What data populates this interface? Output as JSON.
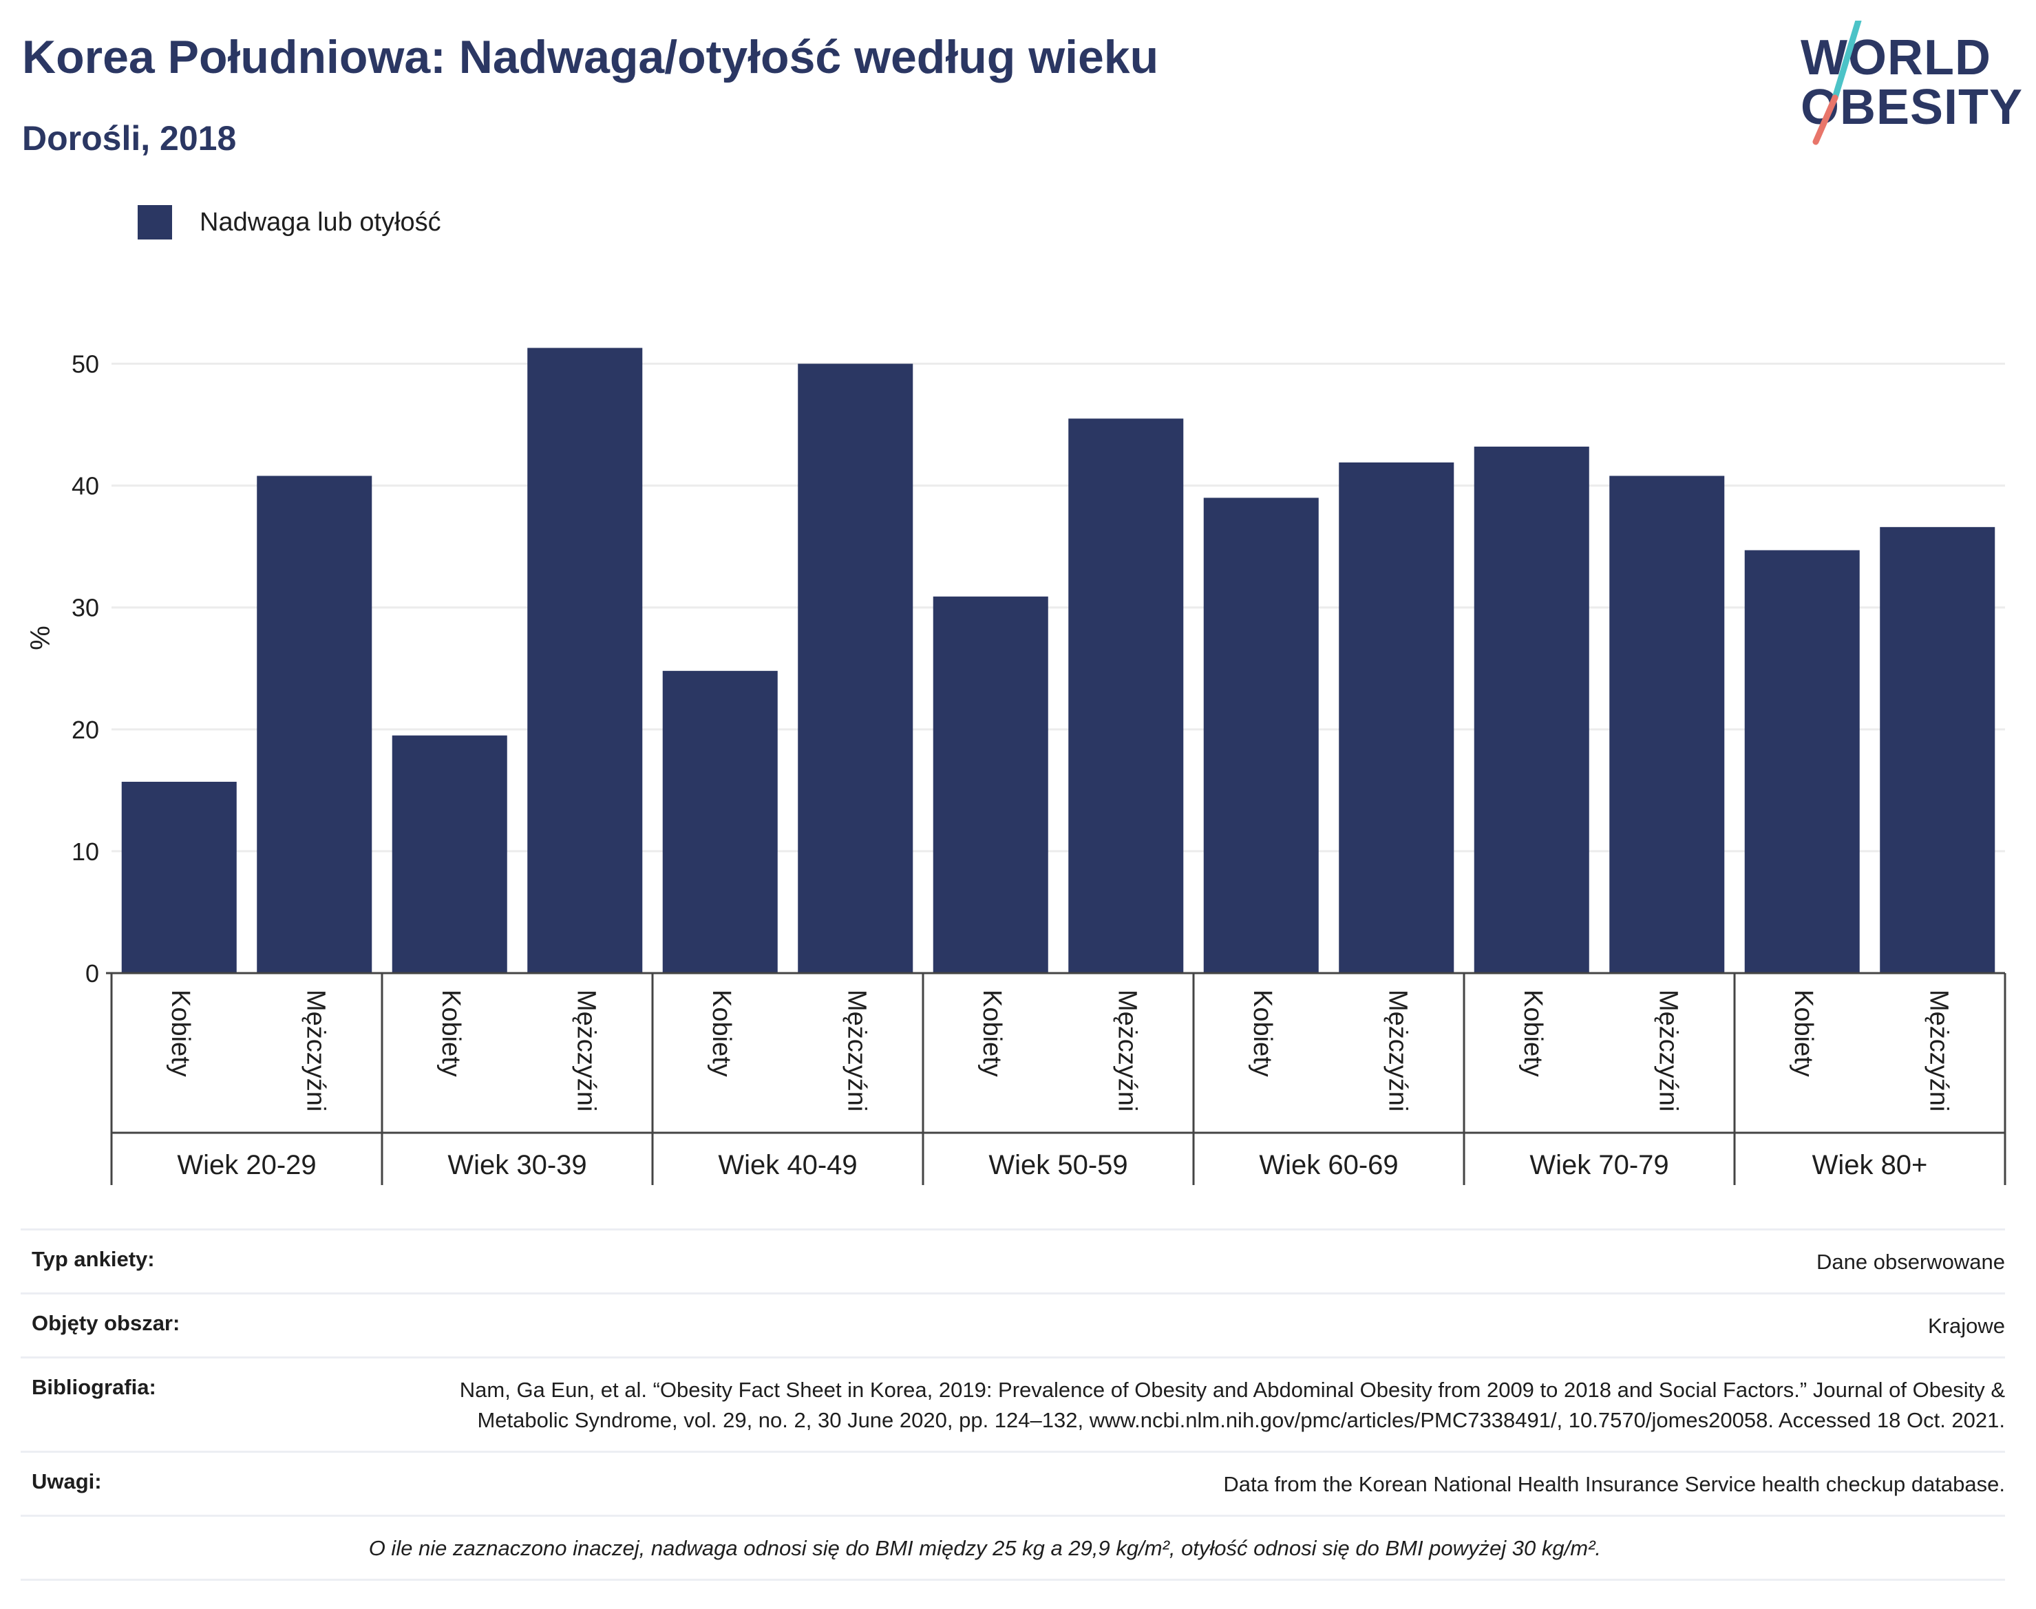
{
  "header": {
    "title": "Korea Południowa: Nadwaga/otyłość według wieku",
    "subtitle": "Dorośli, 2018"
  },
  "logo": {
    "line1": "WORLD",
    "line2": "OBESITY",
    "color_text": "#2b3763",
    "color_slash_top": "#4cc3c7",
    "color_slash_bottom": "#e8756a"
  },
  "colors": {
    "bar": "#2b3763",
    "grid": "#ececec",
    "axis": "#444444"
  },
  "chart_data": {
    "type": "bar",
    "legend": [
      "Nadwaga lub otyłość"
    ],
    "legend_placement": "top-left",
    "ylabel": "%",
    "ylim": [
      0,
      55
    ],
    "yticks": [
      0,
      10,
      20,
      30,
      40,
      50
    ],
    "grid": true,
    "groups": [
      "Wiek 20-29",
      "Wiek 30-39",
      "Wiek 40-49",
      "Wiek 50-59",
      "Wiek 60-69",
      "Wiek 70-79",
      "Wiek 80+"
    ],
    "subcategories": [
      "Kobiety",
      "Mężczyźni"
    ],
    "series": [
      {
        "name": "Nadwaga lub otyłość",
        "values": [
          15.7,
          40.8,
          19.5,
          51.3,
          24.8,
          50.0,
          30.9,
          45.5,
          39.0,
          41.9,
          43.2,
          40.8,
          34.7,
          36.6
        ]
      }
    ]
  },
  "info": {
    "survey_type": {
      "label": "Typ ankiety:",
      "value": "Dane obserwowane"
    },
    "coverage": {
      "label": "Objęty obszar:",
      "value": "Krajowe"
    },
    "bibliography": {
      "label": "Bibliografia:",
      "value": "Nam, Ga Eun, et al. “Obesity Fact Sheet in Korea, 2019: Prevalence of Obesity and Abdominal Obesity from 2009 to 2018 and Social Factors.” Journal of Obesity & Metabolic Syndrome, vol. 29, no. 2, 30 June 2020, pp. 124–132, www.ncbi.nlm.nih.gov/pmc/articles/PMC7338491/, 10.7570/jomes20058. Accessed 18 Oct. 2021."
    },
    "notes": {
      "label": "Uwagi:",
      "value": "Data from the Korean National Health Insurance Service health checkup database."
    },
    "definition": "O ile nie zaznaczono inaczej, nadwaga odnosi się do BMI między 25 kg a 29,9 kg/m², otyłość odnosi się do BMI powyżej 30 kg/m²."
  }
}
